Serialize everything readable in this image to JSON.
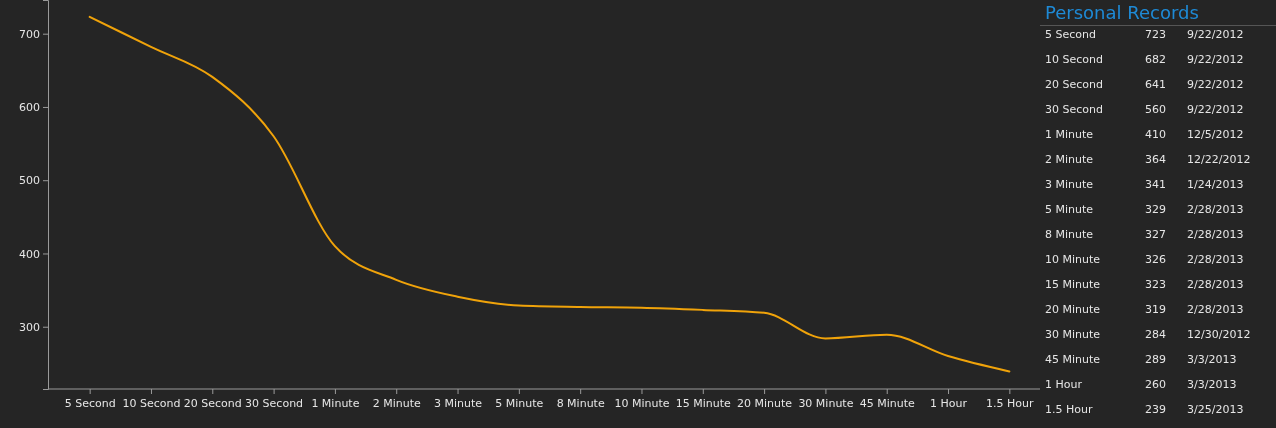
{
  "chart_data": [
    {
      "type": "line",
      "categories": [
        "5 Second",
        "10 Second",
        "20 Second",
        "30 Second",
        "1 Minute",
        "2 Minute",
        "3 Minute",
        "5 Minute",
        "8 Minute",
        "10 Minute",
        "15 Minute",
        "20 Minute",
        "30 Minute",
        "45 Minute",
        "1 Hour",
        "1.5 Hour"
      ],
      "values": [
        723,
        682,
        641,
        560,
        410,
        364,
        341,
        329,
        327,
        326,
        323,
        319,
        284,
        289,
        260,
        239
      ],
      "color": "#f0a30a",
      "ylim": [
        215,
        746
      ],
      "yticks": [
        300,
        400,
        500,
        600,
        700
      ]
    },
    {
      "type": "other",
      "title": "Personal Records",
      "annotations": [
        "5 Second",
        "723",
        "9/22/2012",
        "10 Second",
        "682",
        "9/22/2012",
        "20 Second",
        "641",
        "9/22/2012",
        "30 Second",
        "560",
        "9/22/2012",
        "1 Minute",
        "410",
        "12/5/2012",
        "2 Minute",
        "364",
        "12/22/2012",
        "3 Minute",
        "341",
        "1/24/2013",
        "5 Minute",
        "329",
        "2/28/2013",
        "8 Minute",
        "327",
        "2/28/2013",
        "10 Minute",
        "326",
        "2/28/2013",
        "15 Minute",
        "323",
        "2/28/2013",
        "20 Minute",
        "319",
        "2/28/2013",
        "30 Minute",
        "284",
        "12/30/2012",
        "45 Minute",
        "289",
        "3/3/2013",
        "1 Hour",
        "260",
        "3/3/2013",
        "1.5 Hour",
        "239",
        "3/25/2013"
      ]
    }
  ]
}
